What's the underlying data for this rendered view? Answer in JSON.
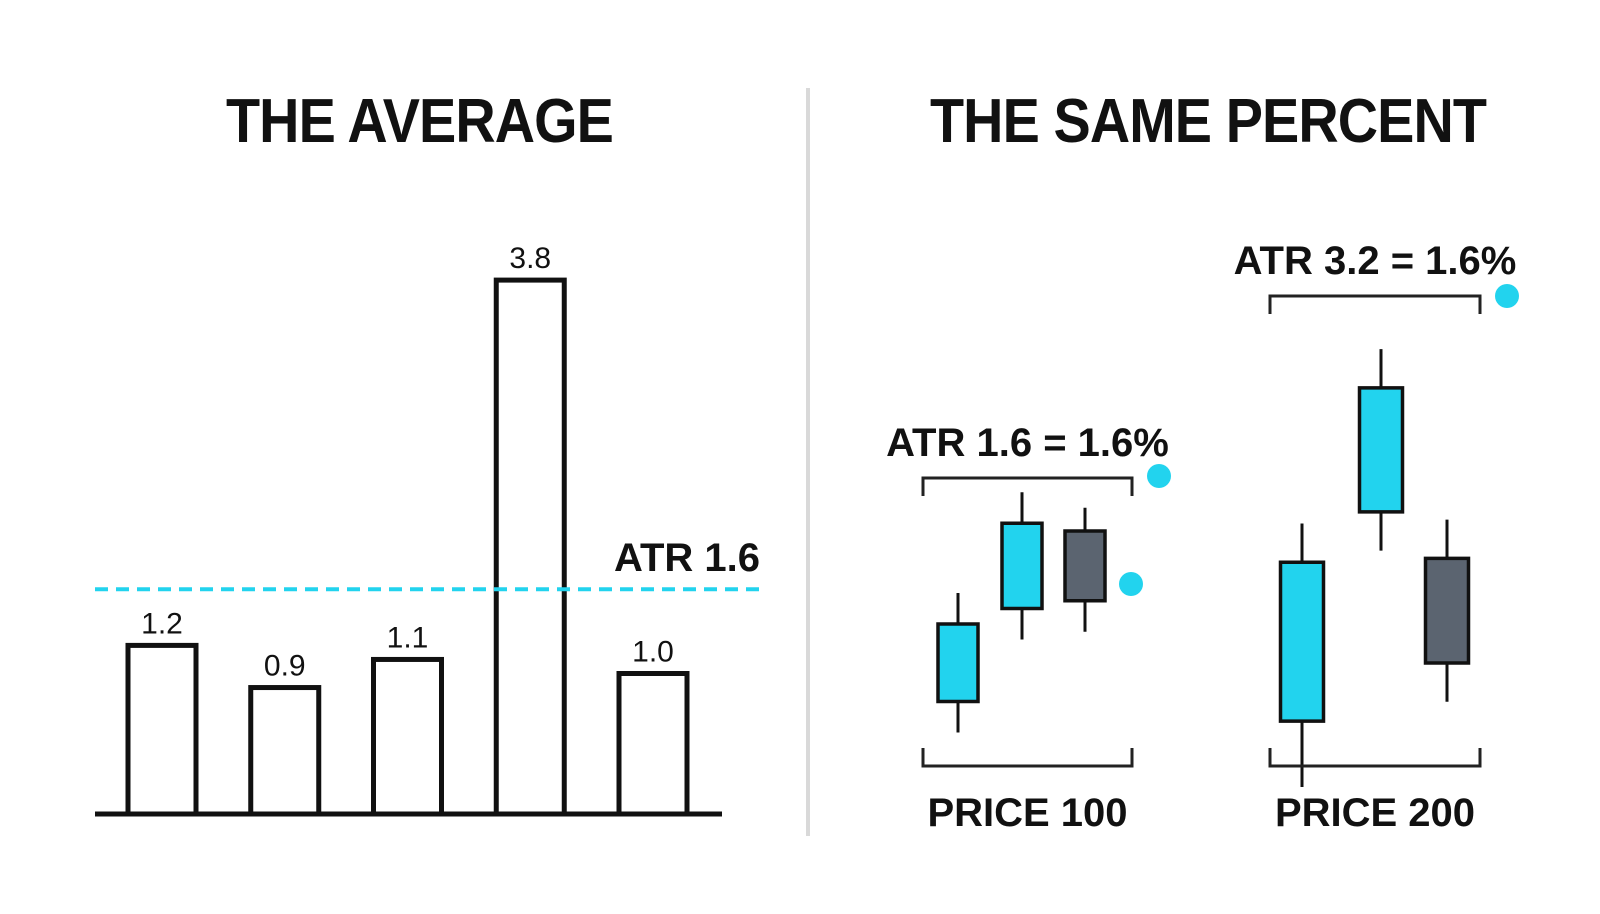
{
  "colors": {
    "accent": "#22d3ee",
    "bearish": "#5b6470",
    "ink": "#111111",
    "divider": "#d9d9d9"
  },
  "chart_data": [
    {
      "type": "bar",
      "title": "THE AVERAGE",
      "categories": [
        "",
        "",
        "",
        "",
        ""
      ],
      "values": [
        1.2,
        0.9,
        1.1,
        3.8,
        1.0
      ],
      "value_labels": [
        "1.2",
        "0.9",
        "1.1",
        "3.8",
        "1.0"
      ],
      "reference_line": {
        "value": 1.6,
        "label": "ATR 1.6",
        "style": "dashed"
      },
      "ylim": [
        0,
        4.0
      ],
      "grid": false
    },
    {
      "type": "candlestick",
      "title": "THE SAME PERCENT",
      "groups": [
        {
          "label": "PRICE 100",
          "atr_label": "ATR 1.6 = 1.6%",
          "candles": [
            {
              "open": 99.4,
              "close": 100.4,
              "high": 100.8,
              "low": 99.0,
              "color": "accent"
            },
            {
              "open": 100.6,
              "close": 101.7,
              "high": 102.1,
              "low": 100.2,
              "color": "accent"
            },
            {
              "open": 101.6,
              "close": 100.7,
              "high": 101.9,
              "low": 100.3,
              "color": "bearish"
            }
          ]
        },
        {
          "label": "PRICE 200",
          "atr_label": "ATR 3.2 = 1.6%",
          "candles": [
            {
              "open": 198.5,
              "close": 202.6,
              "high": 203.6,
              "low": 196.8,
              "color": "accent"
            },
            {
              "open": 203.9,
              "close": 207.1,
              "high": 208.1,
              "low": 202.9,
              "color": "accent"
            },
            {
              "open": 202.7,
              "close": 200.0,
              "high": 203.7,
              "low": 199.0,
              "color": "bearish"
            }
          ]
        }
      ]
    }
  ]
}
